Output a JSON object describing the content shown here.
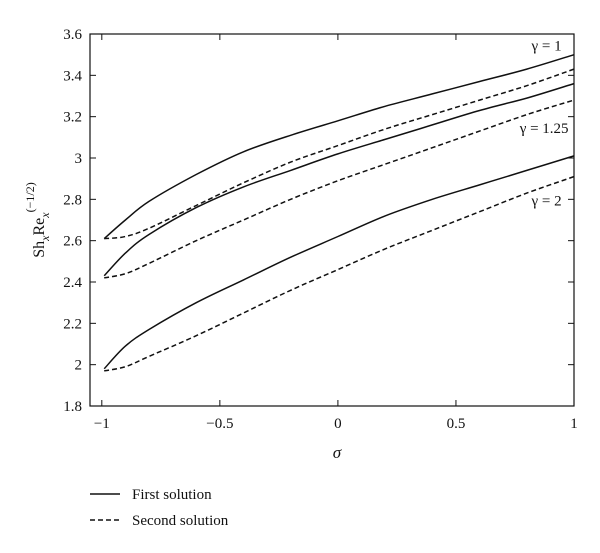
{
  "chart_data": {
    "type": "line",
    "xlabel": "σ",
    "ylabel": {
      "main": "Sh",
      "sub1": "x",
      "mid": "Re",
      "sub2": "x",
      "sup": "(−1/2)"
    },
    "xlim": [
      -1.05,
      1
    ],
    "ylim": [
      1.8,
      3.6
    ],
    "x_ticks": [
      -1,
      -0.5,
      0,
      0.5,
      1
    ],
    "x_tick_labels": [
      "−1",
      "−0.5",
      "0",
      "0.5",
      "1"
    ],
    "y_ticks": [
      1.8,
      2,
      2.2,
      2.4,
      2.6,
      2.8,
      3,
      3.2,
      3.4,
      3.6
    ],
    "y_tick_labels": [
      "1.8",
      "2",
      "2.2",
      "2.4",
      "2.6",
      "2.8",
      "3",
      "3.2",
      "3.4",
      "3.6"
    ],
    "grid": false,
    "legend_position": "below",
    "legend": [
      {
        "label": "First solution",
        "style": "solid"
      },
      {
        "label": "Second solution",
        "style": "dashed"
      }
    ],
    "annotations": [
      {
        "text": "γ = 1",
        "x": 0.82,
        "y": 3.52
      },
      {
        "text": "γ = 1.25",
        "x": 0.77,
        "y": 3.12
      },
      {
        "text": "γ = 2",
        "x": 0.82,
        "y": 2.77
      }
    ],
    "series": [
      {
        "gamma": "1",
        "style": "solid",
        "x": [
          -0.99,
          -0.9,
          -0.8,
          -0.6,
          -0.4,
          -0.2,
          0,
          0.2,
          0.4,
          0.6,
          0.8,
          1
        ],
        "y": [
          2.61,
          2.7,
          2.79,
          2.92,
          3.03,
          3.11,
          3.18,
          3.25,
          3.31,
          3.37,
          3.43,
          3.5
        ]
      },
      {
        "gamma": "1",
        "style": "dashed",
        "x": [
          -0.99,
          -0.9,
          -0.8,
          -0.6,
          -0.4,
          -0.2,
          0,
          0.2,
          0.4,
          0.6,
          0.8,
          1
        ],
        "y": [
          2.61,
          2.62,
          2.66,
          2.77,
          2.88,
          2.98,
          3.06,
          3.14,
          3.21,
          3.28,
          3.35,
          3.43
        ]
      },
      {
        "gamma": "1.25",
        "style": "solid",
        "x": [
          -0.99,
          -0.9,
          -0.8,
          -0.6,
          -0.4,
          -0.2,
          0,
          0.2,
          0.4,
          0.6,
          0.8,
          1
        ],
        "y": [
          2.43,
          2.54,
          2.63,
          2.76,
          2.86,
          2.94,
          3.02,
          3.09,
          3.16,
          3.23,
          3.29,
          3.36
        ]
      },
      {
        "gamma": "1.25",
        "style": "dashed",
        "x": [
          -0.99,
          -0.9,
          -0.8,
          -0.6,
          -0.4,
          -0.2,
          0,
          0.2,
          0.4,
          0.6,
          0.8,
          1
        ],
        "y": [
          2.42,
          2.44,
          2.49,
          2.6,
          2.7,
          2.8,
          2.89,
          2.97,
          3.05,
          3.13,
          3.21,
          3.28
        ]
      },
      {
        "gamma": "2",
        "style": "solid",
        "x": [
          -0.99,
          -0.9,
          -0.8,
          -0.6,
          -0.4,
          -0.2,
          0,
          0.2,
          0.4,
          0.6,
          0.8,
          1
        ],
        "y": [
          1.98,
          2.09,
          2.17,
          2.3,
          2.41,
          2.52,
          2.62,
          2.72,
          2.8,
          2.87,
          2.94,
          3.01
        ]
      },
      {
        "gamma": "2",
        "style": "dashed",
        "x": [
          -0.99,
          -0.9,
          -0.8,
          -0.6,
          -0.4,
          -0.2,
          0,
          0.2,
          0.4,
          0.6,
          0.8,
          1
        ],
        "y": [
          1.97,
          1.99,
          2.04,
          2.14,
          2.25,
          2.36,
          2.46,
          2.56,
          2.65,
          2.74,
          2.83,
          2.91
        ]
      }
    ]
  }
}
